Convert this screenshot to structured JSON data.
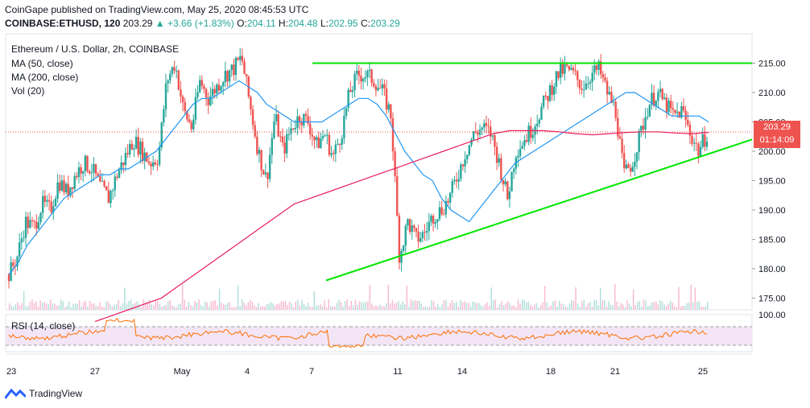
{
  "header": {
    "publisher_line": "CoinGape published on TradingView.com, May 25, 2020 08:45:53 UTC",
    "symbol": "COINBASE:ETHUSD, 120",
    "last": "203.29",
    "change": "+3.66 (+1.83%)",
    "o_label": "O:",
    "o": "204.11",
    "h_label": "H:",
    "h": "204.48",
    "l_label": "L:",
    "l": "202.95",
    "c_label": "C:",
    "c": "203.29"
  },
  "legend": {
    "title": "Ethereum / U.S. Dollar, 2h, COINBASE",
    "ma50": "MA (50, close)",
    "ma200": "MA (200, close)",
    "vol": "Vol (20)",
    "rsi": "RSI (14, close)"
  },
  "price_badge": {
    "price": "203.29",
    "countdown": "01:14:09"
  },
  "footer": {
    "brand": "TradingView"
  },
  "colors": {
    "up": "#26a69a",
    "down": "#ef5350",
    "ma50": "#2196f3",
    "ma200": "#e91e63",
    "trendline": "#00e600",
    "rsi": "#ff6d00",
    "rsi_band": "#f3e5f5"
  },
  "chart_data": {
    "type": "candlestick",
    "title": "Ethereum / U.S. Dollar, 2h, COINBASE",
    "ylim": [
      173,
      220
    ],
    "y_ticks": [
      175,
      180,
      185,
      190,
      195,
      200,
      205,
      210,
      215
    ],
    "y_tick_labels": [
      "175.00",
      "180.00",
      "185.00",
      "190.00",
      "195.00",
      "200.00",
      "205.00",
      "210.00",
      "215.00"
    ],
    "x_tick_labels": [
      "23",
      "27",
      "May",
      "4",
      "7",
      "11",
      "14",
      "18",
      "21",
      "25"
    ],
    "last_price": 203.29,
    "resistance_level": 215.0,
    "ascending_trendline": {
      "from": 178.0,
      "to": 202.0
    },
    "rsi_axis_label": "100.00",
    "close_path": [
      179,
      182,
      188,
      187,
      191,
      190,
      195,
      193,
      196,
      198,
      197,
      194,
      192,
      196,
      199,
      202,
      200,
      198,
      199,
      212,
      215,
      207,
      204,
      212,
      209,
      211,
      213,
      214,
      216,
      208,
      200,
      195,
      206,
      200,
      204,
      206,
      205,
      201,
      203,
      199,
      203,
      210,
      213,
      213,
      212,
      210,
      206,
      182,
      188,
      185,
      186,
      189,
      190,
      192,
      196,
      200,
      203,
      204,
      203,
      198,
      192,
      200,
      202,
      204,
      207,
      210,
      213,
      214,
      213,
      211,
      213,
      214,
      210,
      207,
      196,
      198,
      203,
      208,
      210,
      208,
      206,
      207,
      203,
      200,
      203
    ],
    "ma50_path": [
      179,
      181,
      184,
      186,
      188,
      190,
      192,
      193,
      194,
      195,
      196,
      196,
      197,
      197,
      198,
      199,
      200,
      202,
      204,
      206,
      208,
      209,
      209,
      210,
      211,
      212,
      211,
      210,
      208,
      207,
      206,
      205,
      205,
      205,
      205,
      206,
      207,
      208,
      209,
      209,
      208,
      206,
      203,
      200,
      198,
      196,
      195,
      192,
      190,
      189,
      188,
      190,
      192,
      194,
      196,
      198,
      199,
      200,
      201,
      202,
      203,
      204,
      205,
      206,
      207,
      208,
      209,
      210,
      210,
      209,
      208,
      207,
      206,
      206,
      206,
      206,
      205
    ],
    "ma200_path": [
      171,
      172,
      173,
      174,
      175,
      177,
      179,
      181,
      183,
      185,
      187,
      189,
      191,
      192,
      193,
      194,
      195,
      196,
      197,
      198,
      199,
      200,
      201,
      202,
      203,
      203.5,
      203.5,
      203.5,
      203.3,
      203.0,
      202.8,
      203.0,
      203.2,
      203.3,
      203.3,
      203.1,
      203.0,
      203.2
    ]
  }
}
